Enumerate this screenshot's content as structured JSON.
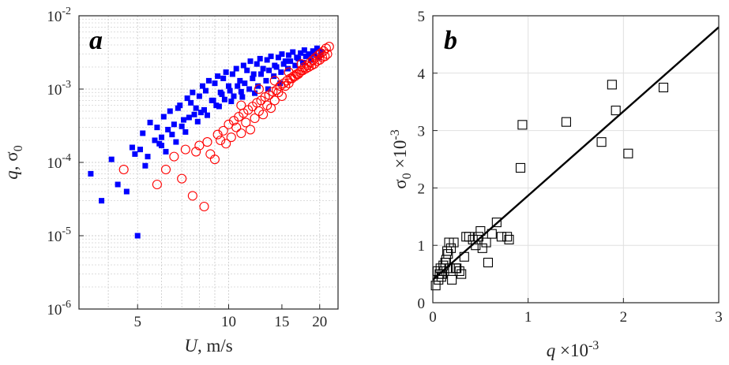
{
  "colors": {
    "series_a1": "#0000ff",
    "series_a2": "#ff0000",
    "markers_b": "#000000",
    "fit_line": "#000000"
  },
  "chart_data": [
    {
      "type": "scatter",
      "panel_label": "a",
      "xscale": "log",
      "yscale": "log",
      "xlim": [
        3.2,
        23
      ],
      "ylim": [
        1e-06,
        0.01
      ],
      "xticks": [
        {
          "value": 5,
          "label": "5"
        },
        {
          "value": 10,
          "label": "10"
        },
        {
          "value": 15,
          "label": "15"
        },
        {
          "value": 20,
          "label": "20"
        }
      ],
      "yticks": [
        {
          "value": 0.01,
          "base": "10",
          "exp": "-2"
        },
        {
          "value": 0.001,
          "base": "10",
          "exp": "-3"
        },
        {
          "value": 0.0001,
          "base": "10",
          "exp": "-4"
        },
        {
          "value": 1e-05,
          "base": "10",
          "exp": "-5"
        },
        {
          "value": 1e-06,
          "base": "10",
          "exp": "-6"
        }
      ],
      "xlabel": {
        "var": "U",
        "rest": ", m/s"
      },
      "ylabel": {
        "var": "q",
        "rest": ", σ",
        "sub": "0"
      },
      "grid": "major and minor",
      "series": [
        {
          "name": "q",
          "marker": "filled-square",
          "color": "#0000ff",
          "x": [
            3.5,
            3.8,
            4.1,
            4.3,
            4.6,
            4.8,
            5.0,
            5.2,
            5.4,
            5.5,
            5.7,
            5.8,
            6.0,
            6.1,
            6.3,
            6.4,
            6.6,
            6.8,
            6.9,
            7.1,
            7.3,
            7.5,
            7.6,
            7.8,
            8.0,
            8.2,
            8.4,
            8.6,
            8.8,
            9.0,
            9.2,
            9.4,
            9.6,
            9.8,
            10.0,
            10.3,
            10.6,
            10.9,
            11.2,
            11.5,
            11.8,
            12.1,
            12.4,
            12.7,
            13.0,
            13.4,
            13.8,
            14.2,
            14.6,
            15.0,
            15.4,
            15.8,
            16.3,
            16.8,
            17.3,
            17.8,
            18.4,
            19.0,
            19.6,
            20.2,
            5.1,
            5.9,
            6.5,
            7.0,
            7.7,
            8.3,
            8.9,
            9.5,
            10.1,
            10.7,
            11.3,
            12.0,
            12.8,
            13.6,
            14.4,
            15.2,
            16.0,
            17.0,
            18.0,
            19.2,
            5.3,
            6.2,
            6.7,
            7.2,
            7.9,
            8.5,
            9.1,
            9.7,
            10.4,
            11.0,
            11.7,
            12.5,
            13.3,
            14.1,
            14.9,
            15.7,
            16.6,
            17.6,
            18.7,
            19.9,
            4.9,
            6.0,
            7.4,
            8.1,
            9.3,
            10.2,
            11.1,
            12.2,
            13.5,
            14.8
          ],
          "y": [
            7e-05,
            3e-05,
            0.00011,
            5e-05,
            4e-05,
            0.00016,
            1e-05,
            0.00025,
            0.00012,
            0.00035,
            0.0002,
            0.0003,
            0.00022,
            0.00042,
            0.00028,
            0.0005,
            0.00033,
            0.00055,
            0.0006,
            0.00038,
            0.00075,
            0.00065,
            0.0009,
            0.00055,
            0.0008,
            0.0011,
            0.00095,
            0.0013,
            0.0007,
            0.0012,
            0.0015,
            0.0009,
            0.0014,
            0.0017,
            0.0011,
            0.0016,
            0.0019,
            0.0013,
            0.0021,
            0.0018,
            0.0024,
            0.0016,
            0.0022,
            0.0026,
            0.0019,
            0.0025,
            0.0028,
            0.0021,
            0.0027,
            0.003,
            0.0024,
            0.0029,
            0.0032,
            0.0027,
            0.0031,
            0.0034,
            0.003,
            0.0033,
            0.0036,
            0.0032,
            0.00015,
            0.00018,
            0.00024,
            0.00031,
            0.00045,
            0.00052,
            0.0007,
            0.00085,
            0.00095,
            0.0011,
            0.0012,
            0.0014,
            0.0016,
            0.0018,
            0.002,
            0.0022,
            0.0024,
            0.0026,
            0.0028,
            0.003,
            9e-05,
            0.00014,
            0.00019,
            0.00026,
            0.00036,
            0.00044,
            0.0006,
            0.00072,
            0.0008,
            0.00092,
            0.001,
            0.0011,
            0.0013,
            0.0015,
            0.0017,
            0.0019,
            0.0021,
            0.0023,
            0.0025,
            0.0027,
            0.00013,
            0.00017,
            0.00041,
            0.00048,
            0.00058,
            0.00068,
            0.00078,
            0.00088,
            0.001,
            0.0012
          ]
        },
        {
          "name": "σ0",
          "marker": "open-circle",
          "color": "#ff0000",
          "x": [
            4.5,
            5.8,
            6.2,
            6.6,
            7.0,
            7.2,
            7.6,
            8.0,
            8.3,
            8.7,
            9.0,
            9.4,
            9.8,
            10.2,
            10.6,
            11.0,
            11.4,
            11.8,
            12.2,
            12.6,
            13.0,
            13.4,
            13.8,
            14.2,
            14.6,
            15.0,
            15.4,
            15.8,
            16.2,
            16.6,
            17.0,
            17.4,
            17.8,
            18.2,
            18.6,
            19.0,
            19.4,
            19.8,
            20.2,
            20.6,
            21.0,
            21.5,
            7.8,
            8.5,
            9.2,
            10.0,
            10.8,
            11.6,
            12.4,
            13.2,
            14.0,
            14.8,
            15.6,
            16.4,
            17.2,
            18.0,
            18.8,
            19.6,
            20.4,
            21.2,
            9.6,
            10.4,
            11.2,
            12.0,
            12.8,
            13.6,
            14.4,
            15.2,
            16.0,
            16.8,
            17.6,
            18.4,
            19.2,
            20.0,
            20.8,
            11.0,
            12.6,
            14.2,
            15.8,
            17.4
          ],
          "y": [
            8e-05,
            5e-05,
            8e-05,
            0.00012,
            6e-05,
            0.00015,
            3.5e-05,
            0.00017,
            2.5e-05,
            0.00013,
            0.00011,
            0.0002,
            0.00018,
            0.00022,
            0.0003,
            0.00025,
            0.00035,
            0.00028,
            0.0004,
            0.0005,
            0.00045,
            0.0006,
            0.00055,
            0.0007,
            0.0009,
            0.0008,
            0.0011,
            0.0012,
            0.0014,
            0.0015,
            0.0016,
            0.0018,
            0.002,
            0.0021,
            0.0023,
            0.0025,
            0.0027,
            0.0029,
            0.0031,
            0.0033,
            0.0036,
            0.0038,
            0.00014,
            0.00019,
            0.00024,
            0.00033,
            0.00042,
            0.00052,
            0.00065,
            0.00078,
            0.00092,
            0.0011,
            0.0013,
            0.0015,
            0.0017,
            0.0019,
            0.0021,
            0.0024,
            0.0027,
            0.003,
            0.00027,
            0.00037,
            0.00047,
            0.00058,
            0.0007,
            0.00083,
            0.00097,
            0.0012,
            0.0014,
            0.0016,
            0.0018,
            0.002,
            0.0022,
            0.0025,
            0.0028,
            0.0006,
            0.001,
            0.0013,
            0.0017,
            0.0022
          ]
        }
      ]
    },
    {
      "type": "scatter",
      "panel_label": "b",
      "xlim": [
        0,
        3
      ],
      "ylim": [
        0,
        5
      ],
      "xticks": [
        {
          "value": 0,
          "label": "0"
        },
        {
          "value": 1,
          "label": "1"
        },
        {
          "value": 2,
          "label": "2"
        },
        {
          "value": 3,
          "label": "3"
        }
      ],
      "yticks": [
        {
          "value": 0,
          "label": "0"
        },
        {
          "value": 1,
          "label": "1"
        },
        {
          "value": 2,
          "label": "2"
        },
        {
          "value": 3,
          "label": "3"
        },
        {
          "value": 4,
          "label": "4"
        },
        {
          "value": 5,
          "label": "5"
        }
      ],
      "xlabel": {
        "var": "q",
        "rest": " ×10",
        "sup": "-3"
      },
      "ylabel": {
        "var": "σ",
        "sub": "0",
        "rest": " ×10",
        "sup": "-3"
      },
      "grid": "major",
      "series": [
        {
          "name": "σ0 vs q",
          "marker": "open-square",
          "color": "#000000",
          "x": [
            0.03,
            0.05,
            0.06,
            0.07,
            0.08,
            0.1,
            0.11,
            0.12,
            0.14,
            0.15,
            0.17,
            0.18,
            0.2,
            0.22,
            0.25,
            0.28,
            0.33,
            0.35,
            0.38,
            0.42,
            0.48,
            0.5,
            0.52,
            0.56,
            0.58,
            0.67,
            0.72,
            0.78,
            0.8,
            0.92,
            0.94,
            1.4,
            1.77,
            1.88,
            1.92,
            2.05,
            2.42,
            0.09,
            0.13,
            0.16,
            0.19,
            0.24,
            0.3,
            0.45,
            0.62
          ],
          "y": [
            0.3,
            0.55,
            0.4,
            0.5,
            0.6,
            0.5,
            0.65,
            0.55,
            0.75,
            0.9,
            1.05,
            0.6,
            0.4,
            1.05,
            0.6,
            0.55,
            0.8,
            1.15,
            1.15,
            1.1,
            1.15,
            1.25,
            0.95,
            1.05,
            0.7,
            1.4,
            1.15,
            1.15,
            1.1,
            2.35,
            3.1,
            3.15,
            2.8,
            3.8,
            3.35,
            2.6,
            3.75,
            0.45,
            0.7,
            0.85,
            0.95,
            0.6,
            0.5,
            1.0,
            1.2
          ]
        }
      ],
      "fit_line": {
        "x": [
          0,
          3
        ],
        "y": [
          0.4,
          4.8
        ]
      }
    }
  ]
}
